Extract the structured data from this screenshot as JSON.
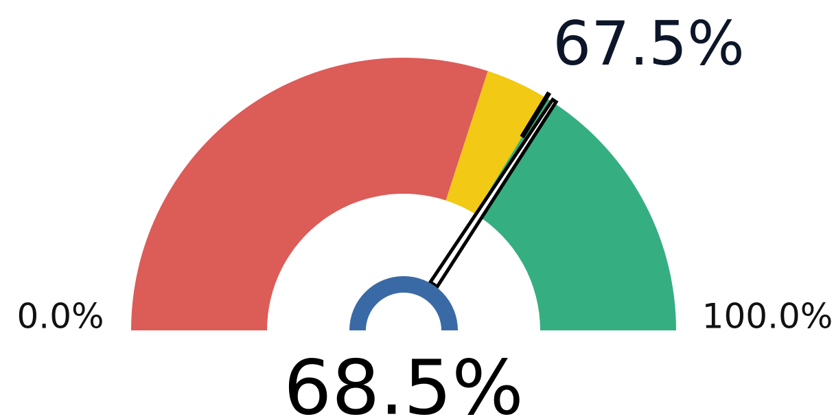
{
  "chart_data": {
    "type": "gauge",
    "value": 68.5,
    "value_label": "68.5%",
    "target": 67.5,
    "target_label": "67.5%",
    "min": {
      "value": 0,
      "label": "0.0%"
    },
    "max": {
      "value": 100,
      "label": "100.0%"
    },
    "bands": [
      {
        "start": 0,
        "end": 60,
        "color": "#dc5c58"
      },
      {
        "start": 60,
        "end": 67.5,
        "color": "#f2c914"
      },
      {
        "start": 67.5,
        "end": 100,
        "color": "#35ae82"
      }
    ],
    "hub_color": "#3a6aa6"
  }
}
